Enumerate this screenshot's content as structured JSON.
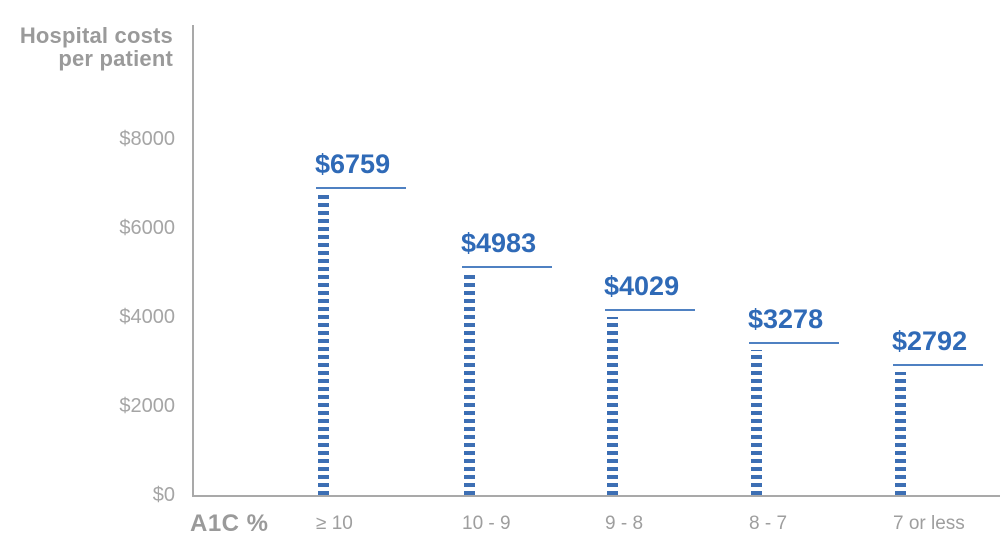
{
  "chart_data": {
    "type": "bar",
    "title": "Hospital costs per patient",
    "title_lines": [
      "Hospital costs",
      "per patient"
    ],
    "xlabel": "A1C %",
    "ylabel": "Hospital costs per patient",
    "categories": [
      "≥ 10",
      "10 - 9",
      "9 - 8",
      "8 - 7",
      "7 or less"
    ],
    "values": [
      6759,
      4983,
      4029,
      3278,
      2792
    ],
    "value_labels": [
      "$6759",
      "$4983",
      "$4029",
      "$3278",
      "$2792"
    ],
    "y_ticks": [
      {
        "label": "$0",
        "value": 0
      },
      {
        "label": "$2000",
        "value": 2000
      },
      {
        "label": "$4000",
        "value": 4000
      },
      {
        "label": "$6000",
        "value": 6000
      },
      {
        "label": "$8000",
        "value": 8000
      }
    ],
    "ylim": [
      0,
      8000
    ],
    "grid": false,
    "legend": false,
    "bar_style": "dashed-column",
    "colors": {
      "bar_blue": "#3d6fb4",
      "marker_line_blue": "#4f81c2",
      "value_text_blue": "#2f6ab7",
      "title_gray": "#9a9a9a",
      "tick_gray": "#a5a5a5",
      "category_gray": "#9e9e9e",
      "axis_gray": "#a9a9a9",
      "background": "#ffffff"
    }
  }
}
